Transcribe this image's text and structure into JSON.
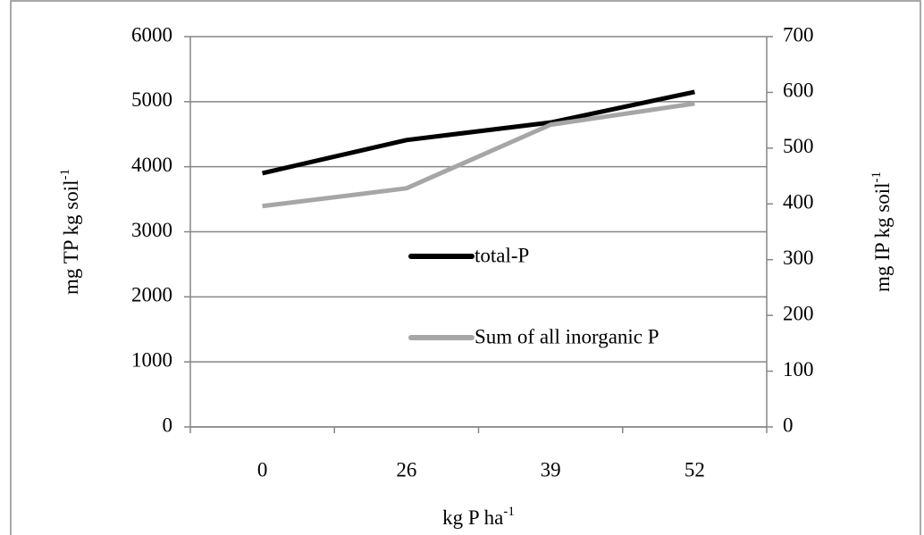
{
  "chart_data": {
    "type": "line",
    "xlabel": {
      "text": "kg P ha",
      "superscript": "-1"
    },
    "ylabel": {
      "text": "mg TP kg soil",
      "superscript": "-1"
    },
    "y2label": {
      "text": "mg IP kg soil",
      "superscript": "-1"
    },
    "categories": [
      "0",
      "26",
      "39",
      "52"
    ],
    "series": [
      {
        "name": "total-P",
        "color": "#000000",
        "values": [
          3900,
          4410,
          4680,
          5150
        ]
      },
      {
        "name": "Sum of all inorganic P",
        "color": "#a6a6a6",
        "axis": "y2",
        "values": [
          396,
          428,
          542,
          580
        ]
      }
    ],
    "ylim": [
      0,
      6000
    ],
    "yticks": [
      0,
      1000,
      2000,
      3000,
      4000,
      5000,
      6000
    ],
    "y2lim": [
      0,
      700
    ],
    "y2ticks": [
      0,
      100,
      200,
      300,
      400,
      500,
      600,
      700
    ],
    "grid": true
  }
}
